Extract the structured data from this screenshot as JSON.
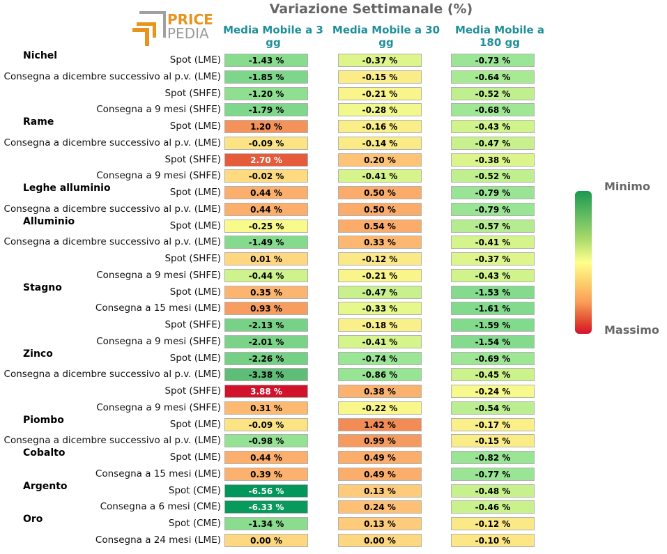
{
  "title": "Variazione Settimanale (%)",
  "logo": {
    "line1": "PRICE",
    "line2": "PEDIA"
  },
  "chart_data": {
    "type": "heatmap",
    "title": "Variazione Settimanale (%)",
    "columns": [
      "Media Mobile a 3 gg",
      "Media Mobile a 30 gg",
      "Media Mobile a 180 gg"
    ],
    "color_scale": {
      "low_label": "Minimo",
      "high_label": "Massimo",
      "low_color": "#1a9850",
      "high_color": "#d6112b"
    },
    "groups": [
      {
        "metal": "Nichel",
        "rows": [
          {
            "label": "Spot (LME)",
            "values": [
              -1.43,
              -0.37,
              -0.73
            ]
          },
          {
            "label": "Consegna a dicembre successivo al p.v. (LME)",
            "values": [
              -1.85,
              -0.15,
              -0.64
            ]
          },
          {
            "label": "Spot (SHFE)",
            "values": [
              -1.2,
              -0.21,
              -0.52
            ]
          },
          {
            "label": "Consegna a 9 mesi (SHFE)",
            "values": [
              -1.79,
              -0.28,
              -0.68
            ]
          }
        ]
      },
      {
        "metal": "Rame",
        "rows": [
          {
            "label": "Spot (LME)",
            "values": [
              1.2,
              -0.16,
              -0.43
            ]
          },
          {
            "label": "Consegna a dicembre successivo al p.v. (LME)",
            "values": [
              -0.09,
              -0.14,
              -0.47
            ]
          },
          {
            "label": "Spot (SHFE)",
            "values": [
              2.7,
              0.2,
              -0.38
            ]
          },
          {
            "label": "Consegna a 9 mesi (SHFE)",
            "values": [
              -0.02,
              -0.41,
              -0.52
            ]
          }
        ]
      },
      {
        "metal": "Leghe alluminio",
        "rows": [
          {
            "label": "Spot (LME)",
            "values": [
              0.44,
              0.5,
              -0.79
            ]
          },
          {
            "label": "Consegna a dicembre successivo al p.v. (LME)",
            "values": [
              0.44,
              0.5,
              -0.79
            ]
          }
        ]
      },
      {
        "metal": "Alluminio",
        "rows": [
          {
            "label": "Spot (LME)",
            "values": [
              -0.25,
              0.54,
              -0.57
            ]
          },
          {
            "label": "Consegna a dicembre successivo al p.v. (LME)",
            "values": [
              -1.49,
              0.33,
              -0.41
            ]
          },
          {
            "label": "Spot (SHFE)",
            "values": [
              0.01,
              -0.12,
              -0.37
            ]
          },
          {
            "label": "Consegna a 9 mesi (SHFE)",
            "values": [
              -0.44,
              -0.21,
              -0.43
            ]
          }
        ]
      },
      {
        "metal": "Stagno",
        "rows": [
          {
            "label": "Spot (LME)",
            "values": [
              0.35,
              -0.47,
              -1.53
            ]
          },
          {
            "label": "Consegna a 15 mesi (LME)",
            "values": [
              0.93,
              -0.33,
              -1.61
            ]
          },
          {
            "label": "Spot (SHFE)",
            "values": [
              -2.13,
              -0.18,
              -1.59
            ]
          },
          {
            "label": "Consegna a 9 mesi (SHFE)",
            "values": [
              -2.01,
              -0.41,
              -1.54
            ]
          }
        ]
      },
      {
        "metal": "Zinco",
        "rows": [
          {
            "label": "Spot (LME)",
            "values": [
              -2.26,
              -0.74,
              -0.69
            ]
          },
          {
            "label": "Consegna a dicembre successivo al p.v. (LME)",
            "values": [
              -3.38,
              -0.86,
              -0.45
            ]
          },
          {
            "label": "Spot (SHFE)",
            "values": [
              3.88,
              0.38,
              -0.24
            ]
          },
          {
            "label": "Consegna a 9 mesi (SHFE)",
            "values": [
              0.31,
              -0.22,
              -0.54
            ]
          }
        ]
      },
      {
        "metal": "Piombo",
        "rows": [
          {
            "label": "Spot (LME)",
            "values": [
              -0.09,
              1.42,
              -0.17
            ]
          },
          {
            "label": "Consegna a dicembre successivo al p.v. (LME)",
            "values": [
              -0.98,
              0.99,
              -0.15
            ]
          }
        ]
      },
      {
        "metal": "Cobalto",
        "rows": [
          {
            "label": "Spot (LME)",
            "values": [
              0.44,
              0.49,
              -0.82
            ]
          },
          {
            "label": "Consegna a 15 mesi (LME)",
            "values": [
              0.39,
              0.49,
              -0.77
            ]
          }
        ]
      },
      {
        "metal": "Argento",
        "rows": [
          {
            "label": "Spot (CME)",
            "values": [
              -6.56,
              0.13,
              -0.48
            ]
          },
          {
            "label": "Consegna a 6 mesi (CME)",
            "values": [
              -6.33,
              0.24,
              -0.46
            ]
          }
        ]
      },
      {
        "metal": "Oro",
        "rows": [
          {
            "label": "Spot (CME)",
            "values": [
              -1.34,
              0.13,
              -0.12
            ]
          },
          {
            "label": "Consegna a 24 mesi (LME)",
            "values": [
              0.0,
              0.0,
              -0.1
            ]
          }
        ]
      }
    ]
  }
}
